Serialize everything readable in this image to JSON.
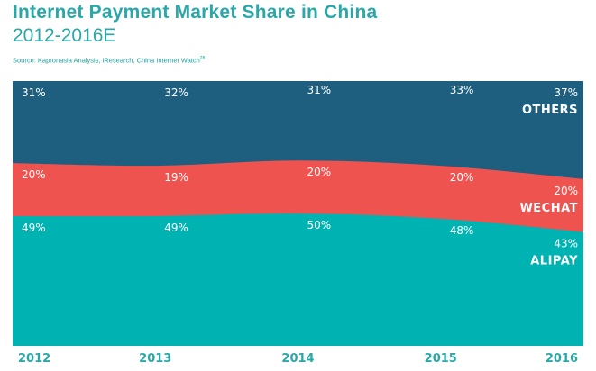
{
  "header": {
    "title": "Internet Payment Market Share in China",
    "subtitle": "2012-2016E",
    "source": "Source: Kapronasia Analysis, iResearch, China Internet Watch",
    "source_footnote": "28"
  },
  "colors": {
    "title": "#2aa8a8",
    "others": "#1e5f80",
    "wechat": "#ef5350",
    "alipay": "#00b3b3"
  },
  "chart_data": {
    "type": "area",
    "stacked": true,
    "normalized": true,
    "categories": [
      "2012",
      "2013",
      "2014",
      "2015",
      "2016"
    ],
    "series": [
      {
        "name": "ALIPAY",
        "values": [
          49,
          49,
          50,
          48,
          43
        ],
        "color": "#00b3b3"
      },
      {
        "name": "WECHAT",
        "values": [
          20,
          19,
          20,
          20,
          20
        ],
        "color": "#ef5350"
      },
      {
        "name": "OTHERS",
        "values": [
          31,
          32,
          31,
          33,
          37
        ],
        "color": "#1e5f80"
      }
    ],
    "ylim": [
      0,
      100
    ],
    "grid": false,
    "legend": "inline-right"
  }
}
